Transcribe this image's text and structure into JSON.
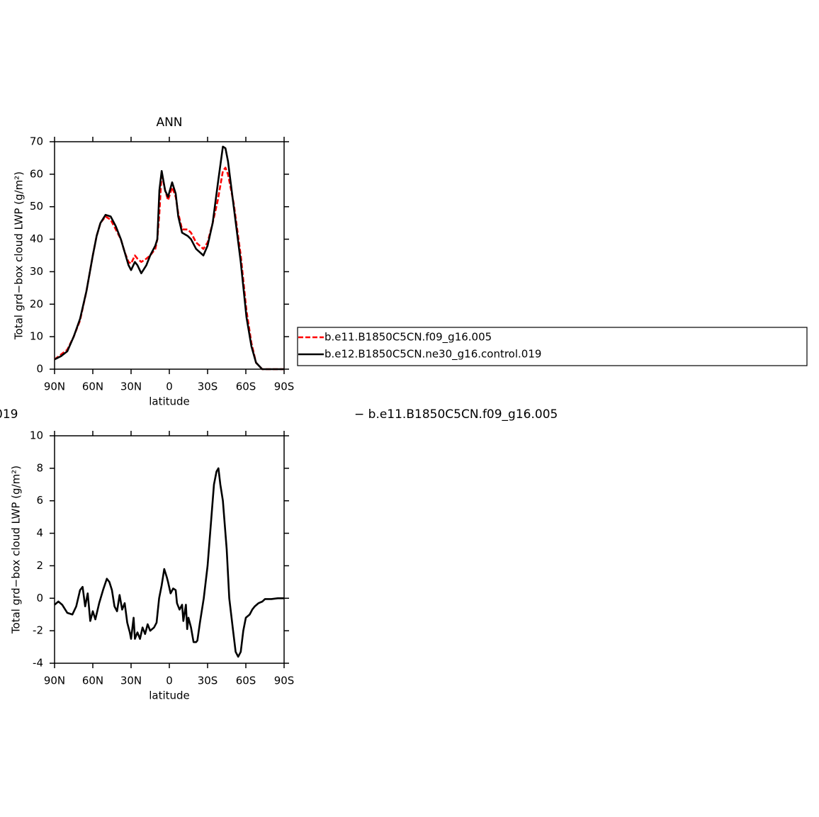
{
  "chart_data": [
    {
      "type": "line",
      "title": "ANN",
      "xlabel": "latitude",
      "ylabel": "Total grd−box cloud LWP (g/m²)",
      "x": [
        90,
        85,
        80,
        75,
        70,
        65,
        60,
        57,
        54,
        50,
        46,
        42,
        38,
        35,
        32,
        30,
        27,
        25,
        22,
        18,
        15,
        11,
        9.4,
        7.8,
        6,
        3.3,
        1,
        -2.2,
        -5,
        -7,
        -10,
        -14.4,
        -17,
        -21,
        -26.7,
        -30,
        -34,
        -38,
        -42,
        -44,
        -46,
        -50.5,
        -56,
        -60.5,
        -64.4,
        -68,
        -72.8,
        -80,
        -90
      ],
      "series": [
        {
          "name": "b.e11.B1850C5CN.f09_g16.005",
          "color": "#ff0000",
          "dash": true,
          "values": [
            3,
            4.5,
            6,
            10,
            15,
            24,
            35,
            41,
            45,
            47,
            46,
            43,
            40,
            36,
            33,
            32.5,
            35,
            34,
            33,
            34,
            35,
            37,
            40,
            48,
            60.5,
            55,
            52,
            56,
            53,
            48,
            43,
            43,
            42,
            39,
            37,
            39,
            45,
            52,
            61,
            62,
            60,
            51,
            35,
            18,
            8,
            2,
            0,
            0,
            0
          ]
        },
        {
          "name": "b.e12.B1850C5CN.ne30_g16.control.019",
          "color": "#000000",
          "dash": false,
          "values": [
            3,
            4,
            5.5,
            10,
            15.5,
            24,
            35,
            41,
            45,
            47.5,
            47,
            44,
            40,
            36,
            32,
            30.5,
            33,
            32,
            29.5,
            32,
            35,
            38,
            40,
            55,
            61,
            55,
            53,
            57.5,
            54,
            47,
            42,
            41,
            40,
            37,
            35,
            38,
            45,
            57,
            68.5,
            68,
            64,
            50,
            33,
            16,
            7,
            2,
            0,
            0,
            0
          ]
        }
      ],
      "xlim": [
        90,
        -90
      ],
      "xticks": [
        {
          "value": 90,
          "label": "90N"
        },
        {
          "value": 60,
          "label": "60N"
        },
        {
          "value": 30,
          "label": "30N"
        },
        0,
        {
          "value": -30,
          "label": "30S"
        },
        {
          "value": -60,
          "label": "60S"
        },
        {
          "value": -90,
          "label": "90S"
        }
      ],
      "ylim": [
        0,
        70
      ],
      "yticks": [
        0,
        10,
        20,
        30,
        40,
        50,
        60,
        70
      ]
    },
    {
      "type": "line",
      "title_parts": [
        "019",
        "− b.e11.B1850C5CN.f09_g16.005"
      ],
      "xlabel": "latitude",
      "ylabel": "Total grd−box cloud LWP (g/m²)",
      "x": [
        90,
        87,
        84,
        80,
        76,
        73,
        70,
        68,
        66,
        64,
        62,
        60,
        58,
        55,
        52,
        49,
        47,
        45,
        43,
        41,
        39,
        37,
        35,
        33,
        31,
        30,
        28,
        27,
        25,
        23,
        21,
        19,
        17,
        15,
        12,
        10,
        8,
        6,
        4,
        2,
        1,
        -1,
        -3,
        -5,
        -6,
        -8,
        -10,
        -11,
        -13,
        -14,
        -15,
        -17,
        -19,
        -21,
        -22,
        -24,
        -27,
        -30,
        -33,
        -35,
        -37,
        -38.5,
        -40,
        -42,
        -45,
        -47,
        -50,
        -52,
        -54,
        -56,
        -58,
        -60,
        -63,
        -65,
        -67,
        -70,
        -73,
        -75,
        -80,
        -85,
        -90
      ],
      "values": [
        -0.4,
        -0.2,
        -0.4,
        -0.9,
        -1,
        -0.5,
        0.5,
        0.7,
        -0.5,
        0.3,
        -1.4,
        -0.8,
        -1.3,
        -0.3,
        0.5,
        1.2,
        1,
        0.5,
        -0.5,
        -0.8,
        0.2,
        -0.7,
        -0.3,
        -1.5,
        -2.1,
        -2.5,
        -1.2,
        -2.5,
        -2.1,
        -2.5,
        -1.8,
        -2.2,
        -1.6,
        -2,
        -1.8,
        -1.5,
        0,
        0.8,
        1.8,
        1.3,
        1,
        0.3,
        0.6,
        0.5,
        -0.3,
        -0.7,
        -0.4,
        -1.4,
        -0.4,
        -1.9,
        -1.2,
        -1.8,
        -2.7,
        -2.7,
        -2.6,
        -1.5,
        0,
        2,
        5,
        7,
        7.8,
        8,
        7,
        6,
        3,
        0,
        -2,
        -3.3,
        -3.6,
        -3.3,
        -2,
        -1.2,
        -1,
        -0.7,
        -0.5,
        -0.3,
        -0.2,
        -0.05,
        -0.05,
        0,
        0
      ],
      "color": "#000000",
      "xlim": [
        90,
        -90
      ],
      "xticks": [
        {
          "value": 90,
          "label": "90N"
        },
        {
          "value": 60,
          "label": "60N"
        },
        {
          "value": 30,
          "label": "30N"
        },
        0,
        {
          "value": -30,
          "label": "30S"
        },
        {
          "value": -60,
          "label": "60S"
        },
        {
          "value": -90,
          "label": "90S"
        }
      ],
      "ylim": [
        -4,
        10
      ],
      "yticks": [
        -4,
        -2,
        0,
        2,
        4,
        6,
        8,
        10
      ]
    }
  ]
}
